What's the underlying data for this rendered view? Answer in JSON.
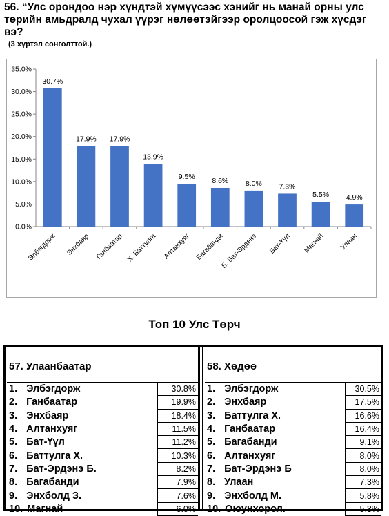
{
  "question": "56. “Улс орондоо нэр хүндтэй хүмүүсээс хэнийг нь манай орны улс төрийн амьдралд чухал үүрэг нөлөөтэйгээр оролцоосой гэж хүсдэг вэ?",
  "note": "(3 хүртэл сонголттой.)",
  "chart_data": {
    "type": "bar",
    "categories": [
      "Элбэгдорж",
      "Энхбаяр",
      "Ганбаатар",
      "Х. Баттулга",
      "Алтанхуяг",
      "Багабанди",
      "Б. Бат-Эрдэнэ",
      "Бат-Үүл",
      "Магнай",
      "Улаан"
    ],
    "values": [
      30.7,
      17.9,
      17.9,
      13.9,
      9.5,
      8.6,
      8.0,
      7.3,
      5.5,
      4.9
    ],
    "value_labels": [
      "30.7%",
      "17.9%",
      "17.9%",
      "13.9%",
      "9.5%",
      "8.6%",
      "8.0%",
      "7.3%",
      "5.5%",
      "4.9%"
    ],
    "yticks": [
      0,
      5,
      10,
      15,
      20,
      25,
      30,
      35
    ],
    "ytick_labels": [
      "0.0%",
      "5.0%",
      "10.0%",
      "15.0%",
      "20.0%",
      "25.0%",
      "30.0%",
      "35.0%"
    ],
    "ylim": [
      0,
      35
    ],
    "title": "",
    "xlabel": "",
    "ylabel": "",
    "bar_color": "#4472c4",
    "grid": false
  },
  "section_title": "Топ 10 Улс Төрч",
  "tables": {
    "city": {
      "title": "57. Улаанбаатар",
      "rows": [
        {
          "rank": "1.",
          "name": "Элбэгдорж",
          "pct": "30.8%"
        },
        {
          "rank": "2.",
          "name": "Ганбаатар",
          "pct": "19.9%"
        },
        {
          "rank": "3.",
          "name": "Энхбаяр",
          "pct": "18.4%"
        },
        {
          "rank": "4.",
          "name": "Алтанхуяг",
          "pct": "11.5%"
        },
        {
          "rank": "5.",
          "name": "Бат-Үүл",
          "pct": "11.2%"
        },
        {
          "rank": "6.",
          "name": "Баттулга Х.",
          "pct": "10.3%"
        },
        {
          "rank": "7.",
          "name": "Бат-Эрдэнэ Б.",
          "pct": "8.2%"
        },
        {
          "rank": "8.",
          "name": "Багабанди",
          "pct": "7.9%"
        },
        {
          "rank": "9.",
          "name": "Энхболд З.",
          "pct": "7.6%"
        },
        {
          "rank": "10.",
          "name": "Магнай",
          "pct": "6.0%"
        }
      ]
    },
    "rural": {
      "title": "58. Хөдөө",
      "rows": [
        {
          "rank": "1.",
          "name": "Элбэгдорж",
          "pct": "30.5%"
        },
        {
          "rank": "2.",
          "name": "Энхбаяр",
          "pct": "17.5%"
        },
        {
          "rank": "3.",
          "name": "Баттулга Х.",
          "pct": "16.6%"
        },
        {
          "rank": "4.",
          "name": "Ганбаатар",
          "pct": "16.4%"
        },
        {
          "rank": "5.",
          "name": "Багабанди",
          "pct": "9.1%"
        },
        {
          "rank": "6.",
          "name": "Алтанхуяг",
          "pct": "8.0%"
        },
        {
          "rank": "7.",
          "name": "Бат-Эрдэнэ Б",
          "pct": "8.0%"
        },
        {
          "rank": "8.",
          "name": "Улаан",
          "pct": "7.3%"
        },
        {
          "rank": "9.",
          "name": "Энхболд М.",
          "pct": "5.8%"
        },
        {
          "rank": "10.",
          "name": "Оюунхорол.",
          "pct": "5.3%"
        }
      ]
    }
  }
}
